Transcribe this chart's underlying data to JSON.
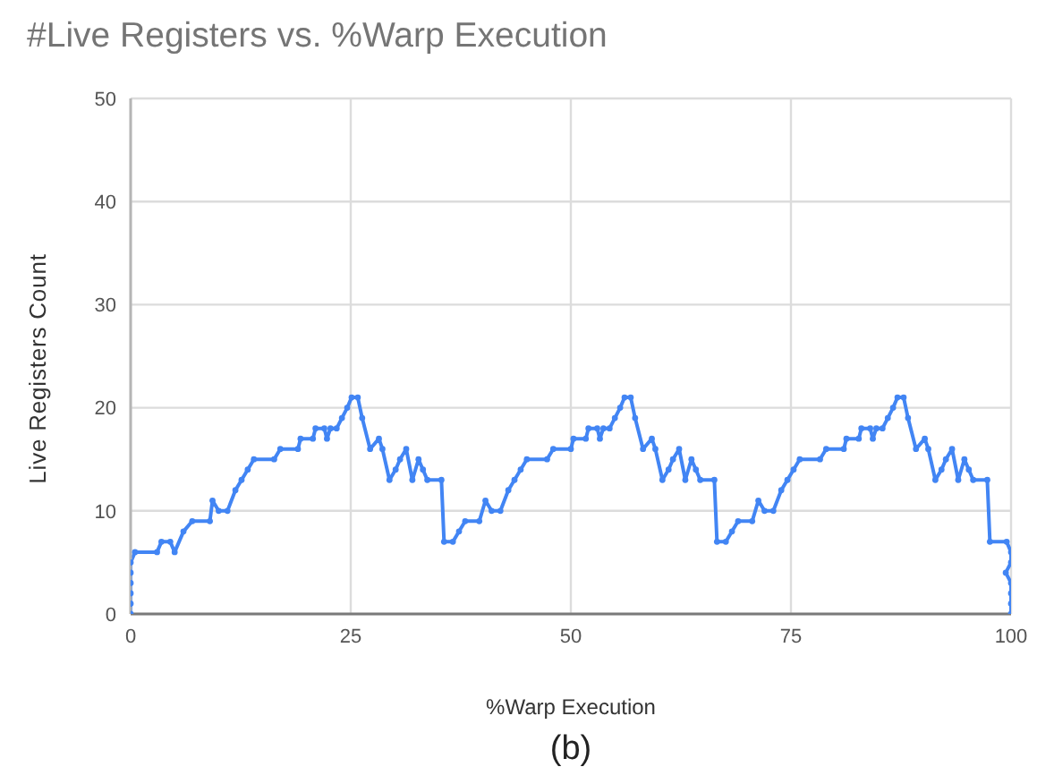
{
  "chart_data": {
    "type": "line",
    "title": "#Live Registers vs. %Warp Execution",
    "xlabel": "%Warp Execution",
    "ylabel": "Live Registers Count",
    "annotations": [
      "(b)"
    ],
    "x": [
      0,
      0,
      0,
      0,
      0,
      0,
      0.5,
      3,
      3.5,
      4.5,
      5,
      6,
      7,
      9,
      9.3,
      10,
      11,
      11.9,
      12.6,
      13.3,
      14,
      16.3,
      17,
      19,
      19.3,
      20.7,
      21,
      22,
      22.3,
      22.7,
      23.4,
      24,
      24.6,
      25.1,
      25.8,
      26.3,
      27.2,
      28.2,
      28.6,
      29.4,
      30.1,
      30.6,
      31.3,
      32,
      32.7,
      33.2,
      33.7,
      35.3,
      35.6,
      36.6,
      37.3,
      38,
      39.6,
      40.3,
      41,
      42,
      42.9,
      43.6,
      44.3,
      45,
      47.3,
      48,
      50,
      50.3,
      51.7,
      52,
      53,
      53.3,
      53.7,
      54.4,
      55,
      55.6,
      56.1,
      56.8,
      57.3,
      58.2,
      59.2,
      59.6,
      60.4,
      61.1,
      61.6,
      62.3,
      63,
      63.7,
      64.2,
      64.7,
      66.3,
      66.6,
      67.6,
      68.3,
      69,
      70.6,
      71.3,
      72,
      73,
      73.9,
      74.6,
      75.3,
      76,
      78.3,
      79,
      81,
      81.3,
      82.7,
      83,
      84,
      84.3,
      84.7,
      85.4,
      86,
      86.6,
      87.1,
      87.8,
      88.3,
      89.2,
      90.2,
      90.6,
      91.4,
      92.1,
      92.6,
      93.3,
      94,
      94.7,
      95.2,
      95.7,
      97.3,
      97.6,
      99.5,
      100,
      100,
      99.4,
      100,
      100,
      100,
      100
    ],
    "series": [
      {
        "color": "#4285f4",
        "values": [
          0,
          1,
          2,
          3,
          4,
          5,
          6,
          6,
          7,
          7,
          6,
          8,
          9,
          9,
          11,
          10,
          10,
          12,
          13,
          14,
          15,
          15,
          16,
          16,
          17,
          17,
          18,
          18,
          17,
          18,
          18,
          19,
          20,
          21,
          21,
          19,
          16,
          17,
          16,
          13,
          14,
          15,
          16,
          13,
          15,
          14,
          13,
          13,
          7,
          7,
          8,
          9,
          9,
          11,
          10,
          10,
          12,
          13,
          14,
          15,
          15,
          16,
          16,
          17,
          17,
          18,
          18,
          17,
          18,
          18,
          19,
          20,
          21,
          21,
          19,
          16,
          17,
          16,
          13,
          14,
          15,
          16,
          13,
          15,
          14,
          13,
          13,
          7,
          7,
          8,
          9,
          9,
          11,
          10,
          10,
          12,
          13,
          14,
          15,
          15,
          16,
          16,
          17,
          17,
          18,
          18,
          17,
          18,
          18,
          19,
          20,
          21,
          21,
          19,
          16,
          17,
          16,
          13,
          14,
          15,
          16,
          13,
          15,
          14,
          13,
          13,
          7,
          7,
          6,
          5,
          4,
          3,
          2,
          1,
          0
        ]
      }
    ],
    "xlim": [
      0,
      100
    ],
    "xticks": [
      0,
      25,
      50,
      75,
      100
    ],
    "ylim": [
      0,
      50
    ],
    "yticks": [
      0,
      10,
      20,
      30,
      40,
      50
    ],
    "grid": true,
    "marker": "circle",
    "line_style": "solid"
  }
}
